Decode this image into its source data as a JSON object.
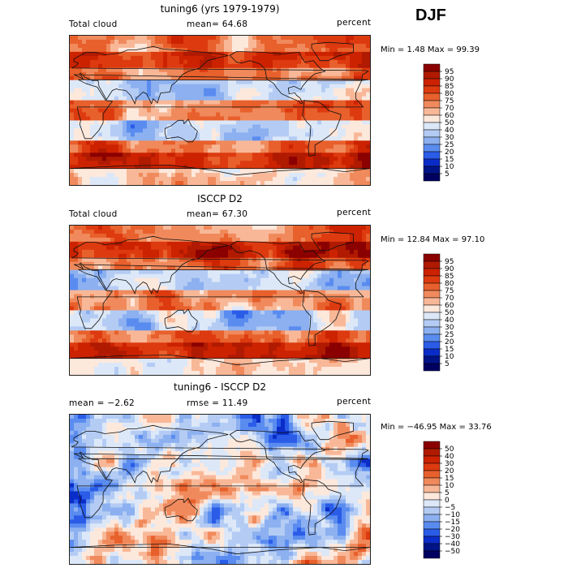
{
  "season": "DJF",
  "panels": [
    {
      "title": "tuning6 (yrs 1979-1979)",
      "left_label": "Total cloud",
      "center_label": "mean=  64.68",
      "right_label": "percent",
      "minmax": "Min =    1.48 Max =   99.39",
      "scheme": "abs"
    },
    {
      "title": "ISCCP D2",
      "left_label": "Total cloud",
      "center_label": "mean=  67.30",
      "right_label": "percent",
      "minmax": "Min =  12.84 Max =  97.10",
      "scheme": "abs"
    },
    {
      "title": "tuning6 - ISCCP D2",
      "left_label": "mean =   −2.62",
      "center_label": "rmse =  11.49",
      "right_label": "percent",
      "minmax": "Min = −46.95 Max =  33.76",
      "scheme": "diff"
    }
  ],
  "chart_data": [
    {
      "type": "heatmap",
      "title": "tuning6 (yrs 1979-1979)",
      "variable": "Total cloud",
      "units": "percent",
      "mean": 64.68,
      "min": 1.48,
      "max": 99.39,
      "colorbar_levels": [
        "95",
        "90",
        "85",
        "80",
        "75",
        "70",
        "60",
        "50",
        "40",
        "30",
        "25",
        "20",
        "15",
        "10",
        "5"
      ],
      "colorbar_colors": [
        "#8b0000",
        "#b01a00",
        "#cc2200",
        "#dd3a10",
        "#e8602c",
        "#f08a5c",
        "#f8b898",
        "#fde8dc",
        "#dce8f8",
        "#b4ccf4",
        "#8cb0f0",
        "#5a8cf0",
        "#2a5ce8",
        "#0a2cc8",
        "#001488",
        "#000060"
      ]
    },
    {
      "type": "heatmap",
      "title": "ISCCP D2",
      "variable": "Total cloud",
      "units": "percent",
      "mean": 67.3,
      "min": 12.84,
      "max": 97.1,
      "colorbar_levels": [
        "95",
        "90",
        "85",
        "80",
        "75",
        "70",
        "60",
        "50",
        "40",
        "30",
        "25",
        "20",
        "15",
        "10",
        "5"
      ],
      "colorbar_colors": [
        "#8b0000",
        "#b01a00",
        "#cc2200",
        "#dd3a10",
        "#e8602c",
        "#f08a5c",
        "#f8b898",
        "#fde8dc",
        "#dce8f8",
        "#b4ccf4",
        "#8cb0f0",
        "#5a8cf0",
        "#2a5ce8",
        "#0a2cc8",
        "#001488",
        "#000060"
      ]
    },
    {
      "type": "heatmap",
      "title": "tuning6 - ISCCP D2",
      "units": "percent",
      "mean": -2.62,
      "rmse": 11.49,
      "min": -46.95,
      "max": 33.76,
      "colorbar_levels": [
        "50",
        "40",
        "30",
        "20",
        "15",
        "10",
        "5",
        "0",
        "−5",
        "−10",
        "−15",
        "−20",
        "−30",
        "−40",
        "−50"
      ],
      "colorbar_colors": [
        "#8b0000",
        "#b01a00",
        "#cc2200",
        "#dd3a10",
        "#e8602c",
        "#f08a5c",
        "#f8b898",
        "#fde8dc",
        "#dce8f8",
        "#b4ccf4",
        "#8cb0f0",
        "#5a8cf0",
        "#2a5ce8",
        "#0a2cc8",
        "#001488",
        "#000060"
      ]
    }
  ]
}
